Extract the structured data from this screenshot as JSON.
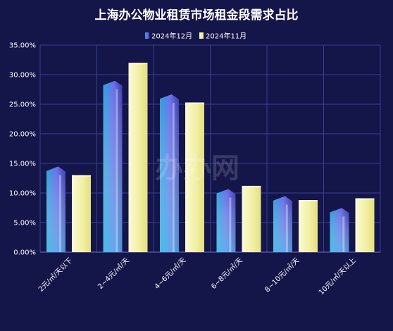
{
  "chart_data": {
    "type": "bar",
    "title": "上海办公物业租赁市场租金段需求占比",
    "categories": [
      "2元/㎡/天以下",
      "2~4元/㎡/天",
      "4~6元/㎡/天",
      "6~8元/㎡/天",
      "8~10元/㎡/天",
      "10元/㎡/天以上"
    ],
    "series": [
      {
        "name": "2024年12月",
        "values": [
          14.1,
          28.6,
          26.3,
          10.3,
          9.1,
          7.1
        ]
      },
      {
        "name": "2024年11月",
        "values": [
          13.0,
          32.0,
          25.3,
          11.2,
          8.8,
          9.1
        ]
      }
    ],
    "yticks": [
      "0.00%",
      "5.00%",
      "10.00%",
      "15.00%",
      "20.00%",
      "25.00%",
      "30.00%",
      "35.00%"
    ],
    "ylim": [
      0,
      35
    ],
    "grid": true,
    "legend_position": "top-center",
    "watermark": "办办网",
    "colors": {
      "background": "#141548",
      "grid": "#3b3f96",
      "series1_dark": "#5b4fd6",
      "series1_light": "#3ec6e6",
      "series2": "#f3f1b5"
    }
  }
}
